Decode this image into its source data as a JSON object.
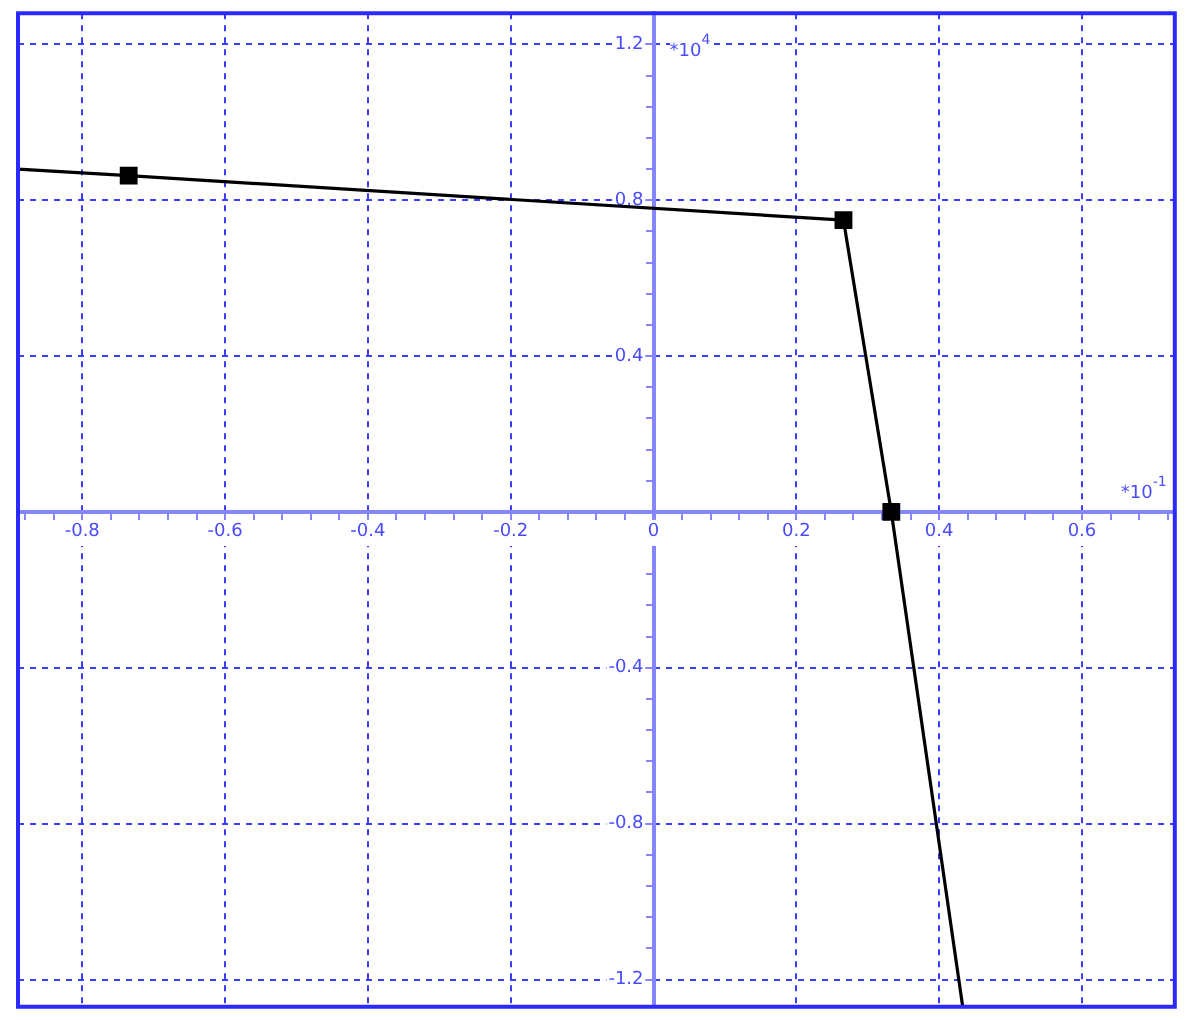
{
  "chart_data": {
    "type": "line",
    "xlabel": "*10$^{-1}$",
    "ylabel": "*10$^{4}$",
    "xlim": [
      -0.89,
      0.73
    ],
    "ylim": [
      -1.27,
      1.28
    ],
    "xticks": [
      {
        "value": -0.88,
        "label": null
      },
      {
        "value": -0.84,
        "label": null
      },
      -0.8,
      {
        "value": -0.76,
        "label": null
      },
      {
        "value": -0.72,
        "label": null
      },
      {
        "value": -0.68,
        "label": null
      },
      {
        "value": -0.64,
        "label": null
      },
      -0.6,
      {
        "value": -0.56,
        "label": null
      },
      {
        "value": -0.52,
        "label": null
      },
      {
        "value": -0.48,
        "label": null
      },
      {
        "value": -0.44,
        "label": null
      },
      -0.4,
      {
        "value": -0.36,
        "label": null
      },
      {
        "value": -0.32,
        "label": null
      },
      {
        "value": -0.28,
        "label": null
      },
      {
        "value": -0.24,
        "label": null
      },
      -0.2,
      {
        "value": -0.16,
        "label": null
      },
      {
        "value": -0.12,
        "label": null
      },
      {
        "value": -0.08,
        "label": null
      },
      {
        "value": -0.04,
        "label": null
      },
      0,
      {
        "value": 0.04,
        "label": null
      },
      {
        "value": 0.08,
        "label": null
      },
      {
        "value": 0.12,
        "label": null
      },
      {
        "value": 0.16,
        "label": null
      },
      0.2,
      {
        "value": 0.24,
        "label": null
      },
      {
        "value": 0.28,
        "label": null
      },
      {
        "value": 0.32,
        "label": null
      },
      {
        "value": 0.36,
        "label": null
      },
      0.4,
      {
        "value": 0.44,
        "label": null
      },
      {
        "value": 0.48,
        "label": null
      },
      {
        "value": 0.52,
        "label": null
      },
      {
        "value": 0.56,
        "label": null
      },
      0.6,
      {
        "value": 0.64,
        "label": null
      },
      {
        "value": 0.68,
        "label": null
      },
      {
        "value": 0.72,
        "label": null
      }
    ],
    "yticks": [
      -1.2,
      {
        "value": -1.12,
        "label": null
      },
      {
        "value": -1.04,
        "label": null
      },
      {
        "value": -0.96,
        "label": null
      },
      {
        "value": -0.88,
        "label": null
      },
      -0.8,
      {
        "value": -0.72,
        "label": null
      },
      {
        "value": -0.64,
        "label": null
      },
      {
        "value": -0.56,
        "label": null
      },
      {
        "value": -0.48,
        "label": null
      },
      -0.4,
      {
        "value": -0.32,
        "label": null
      },
      {
        "value": -0.24,
        "label": null
      },
      {
        "value": -0.16,
        "label": null
      },
      {
        "value": -0.08,
        "label": null
      },
      {
        "value": 0,
        "label": null
      },
      {
        "value": 0.08,
        "label": null
      },
      {
        "value": 0.16,
        "label": null
      },
      {
        "value": 0.24,
        "label": null
      },
      {
        "value": 0.32,
        "label": null
      },
      0.4,
      {
        "value": 0.48,
        "label": null
      },
      {
        "value": 0.56,
        "label": null
      },
      {
        "value": 0.64,
        "label": null
      },
      {
        "value": 0.72,
        "label": null
      },
      0.8,
      {
        "value": 0.88,
        "label": null
      },
      {
        "value": 0.96,
        "label": null
      },
      {
        "value": 1.04,
        "label": null
      },
      {
        "value": 1.12,
        "label": null
      },
      1.2
    ],
    "grid": true,
    "series": [
      {
        "type": "line",
        "color": "#000000",
        "marker": "none",
        "x": [
          -0.89,
          -0.735,
          0.266,
          0.333,
          0.433
        ],
        "values": [
          0.88,
          0.863,
          0.749,
          0,
          -1.27
        ]
      },
      {
        "type": "scatter",
        "color": "#000000",
        "marker": "square",
        "x": [
          -0.735,
          0.266,
          0.333
        ],
        "values": [
          0.863,
          0.749,
          0
        ]
      }
    ]
  }
}
